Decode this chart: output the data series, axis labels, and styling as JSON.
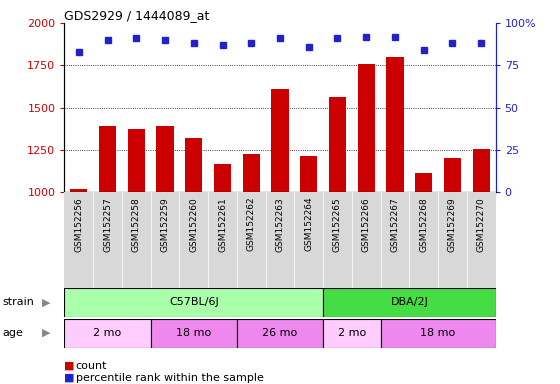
{
  "title": "GDS2929 / 1444089_at",
  "samples": [
    "GSM152256",
    "GSM152257",
    "GSM152258",
    "GSM152259",
    "GSM152260",
    "GSM152261",
    "GSM152262",
    "GSM152263",
    "GSM152264",
    "GSM152265",
    "GSM152266",
    "GSM152267",
    "GSM152268",
    "GSM152269",
    "GSM152270"
  ],
  "counts": [
    1020,
    1390,
    1370,
    1390,
    1320,
    1165,
    1225,
    1610,
    1215,
    1565,
    1760,
    1800,
    1110,
    1200,
    1255
  ],
  "percentile": [
    83,
    90,
    91,
    90,
    88,
    87,
    88,
    91,
    86,
    91,
    92,
    92,
    84,
    88,
    88
  ],
  "ylim_left": [
    1000,
    2000
  ],
  "ylim_right": [
    0,
    100
  ],
  "yticks_left": [
    1000,
    1250,
    1500,
    1750,
    2000
  ],
  "yticks_right": [
    0,
    25,
    50,
    75,
    100
  ],
  "bar_color": "#CC0000",
  "dot_color": "#2222CC",
  "grid_color": "#000000",
  "xtick_bg": "#D8D8D8",
  "strain_groups": [
    {
      "label": "C57BL/6J",
      "start": 0,
      "end": 8,
      "color": "#AAFFAA"
    },
    {
      "label": "DBA/2J",
      "start": 9,
      "end": 14,
      "color": "#44DD44"
    }
  ],
  "age_groups": [
    {
      "label": "2 mo",
      "start": 0,
      "end": 2,
      "color": "#FFCCFF"
    },
    {
      "label": "18 mo",
      "start": 3,
      "end": 5,
      "color": "#EE88EE"
    },
    {
      "label": "26 mo",
      "start": 6,
      "end": 8,
      "color": "#EE88EE"
    },
    {
      "label": "2 mo",
      "start": 9,
      "end": 10,
      "color": "#FFCCFF"
    },
    {
      "label": "18 mo",
      "start": 11,
      "end": 14,
      "color": "#EE88EE"
    }
  ],
  "legend_count_label": "count",
  "legend_pct_label": "percentile rank within the sample"
}
